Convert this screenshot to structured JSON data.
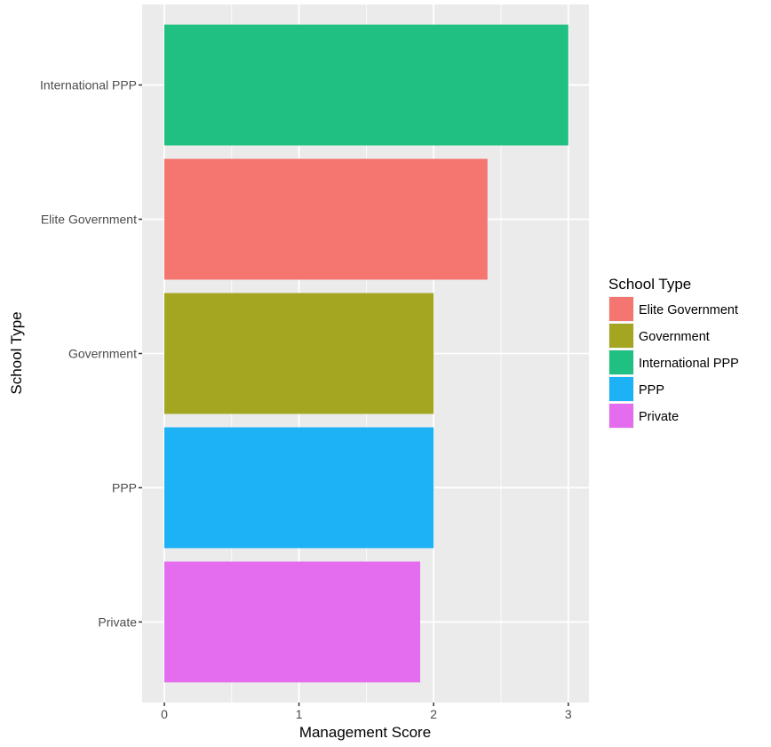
{
  "chart_data": {
    "type": "bar",
    "orientation": "horizontal",
    "categories": [
      "International PPP",
      "Elite Government",
      "Government",
      "PPP",
      "Private"
    ],
    "values": [
      3.0,
      2.4,
      2.0,
      2.0,
      1.9
    ],
    "colors": [
      "#20C083",
      "#F57670",
      "#A4A520",
      "#1DB2F5",
      "#E46DEF"
    ],
    "xlabel": "Management Score",
    "ylabel": "School Type",
    "xlim": [
      0,
      3
    ],
    "xticks": [
      "0",
      "1",
      "2",
      "3"
    ],
    "grid": true,
    "legend": {
      "title": "School Type",
      "position": "right",
      "items": [
        {
          "label": "Elite Government",
          "color": "#F57670"
        },
        {
          "label": "Government",
          "color": "#A4A520"
        },
        {
          "label": "International PPP",
          "color": "#20C083"
        },
        {
          "label": "PPP",
          "color": "#1DB2F5"
        },
        {
          "label": "Private",
          "color": "#E46DEF"
        }
      ]
    }
  }
}
